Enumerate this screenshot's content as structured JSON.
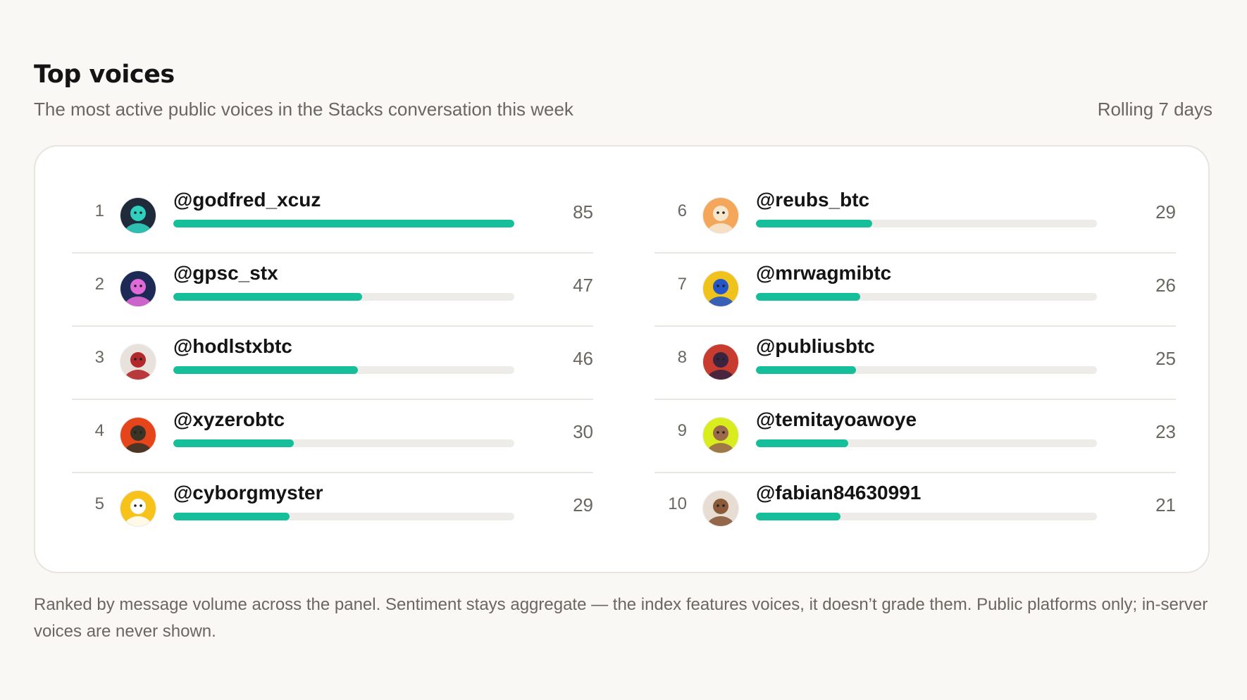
{
  "header": {
    "title": "Top voices",
    "subtitle": "The most active public voices in the Stacks conversation this week",
    "window_label": "Rolling 7 days"
  },
  "colors": {
    "accent": "#14bf9a",
    "track": "#eeece8",
    "background": "#f9f8f5"
  },
  "voices": [
    {
      "rank": "1",
      "handle": "@godfred_xcuz",
      "count": "85",
      "share": 1.0,
      "avatar_icon": "green-alien-avatar-icon",
      "avatar_colors": [
        "#1f2a3a",
        "#2fd0c0"
      ]
    },
    {
      "rank": "2",
      "handle": "@gpsc_stx",
      "count": "47",
      "share": 0.553,
      "avatar_icon": "astronaut-avatar-icon",
      "avatar_colors": [
        "#1c2a55",
        "#e06ad8"
      ]
    },
    {
      "rank": "3",
      "handle": "@hodlstxbtc",
      "count": "46",
      "share": 0.541,
      "avatar_icon": "red-cap-ape-avatar-icon",
      "avatar_colors": [
        "#e9e2dc",
        "#b3282a"
      ]
    },
    {
      "rank": "4",
      "handle": "@xyzerobtc",
      "count": "30",
      "share": 0.353,
      "avatar_icon": "soldier-avatar-icon",
      "avatar_colors": [
        "#e6451c",
        "#3a3326"
      ]
    },
    {
      "rank": "5",
      "handle": "@cyborgmyster",
      "count": "29",
      "share": 0.341,
      "avatar_icon": "yellow-cat-glasses-avatar-icon",
      "avatar_colors": [
        "#f7c21a",
        "#ffffff"
      ]
    },
    {
      "rank": "6",
      "handle": "@reubs_btc",
      "count": "29",
      "share": 0.341,
      "avatar_icon": "orange-cat-avatar-icon",
      "avatar_colors": [
        "#f4a65a",
        "#f6e7cf"
      ]
    },
    {
      "rank": "7",
      "handle": "@mrwagmibtc",
      "count": "26",
      "share": 0.306,
      "avatar_icon": "blue-hood-avatar-icon",
      "avatar_colors": [
        "#f0c21c",
        "#2455c9"
      ]
    },
    {
      "rank": "8",
      "handle": "@publiusbtc",
      "count": "25",
      "share": 0.294,
      "avatar_icon": "red-knight-avatar-icon",
      "avatar_colors": [
        "#c83b2f",
        "#3b2440"
      ]
    },
    {
      "rank": "9",
      "handle": "@temitayoawoye",
      "count": "23",
      "share": 0.271,
      "avatar_icon": "lime-portrait-avatar-icon",
      "avatar_colors": [
        "#d8ec1e",
        "#9a6a4a"
      ]
    },
    {
      "rank": "10",
      "handle": "@fabian84630991",
      "count": "21",
      "share": 0.247,
      "avatar_icon": "crowned-man-avatar-icon",
      "avatar_colors": [
        "#e8ddd2",
        "#8a5a3a"
      ]
    }
  ],
  "footnote": "Ranked by message volume across the panel. Sentiment stays aggregate — the index features voices, it doesn’t grade them. Public platforms only; in-server voices are never shown."
}
